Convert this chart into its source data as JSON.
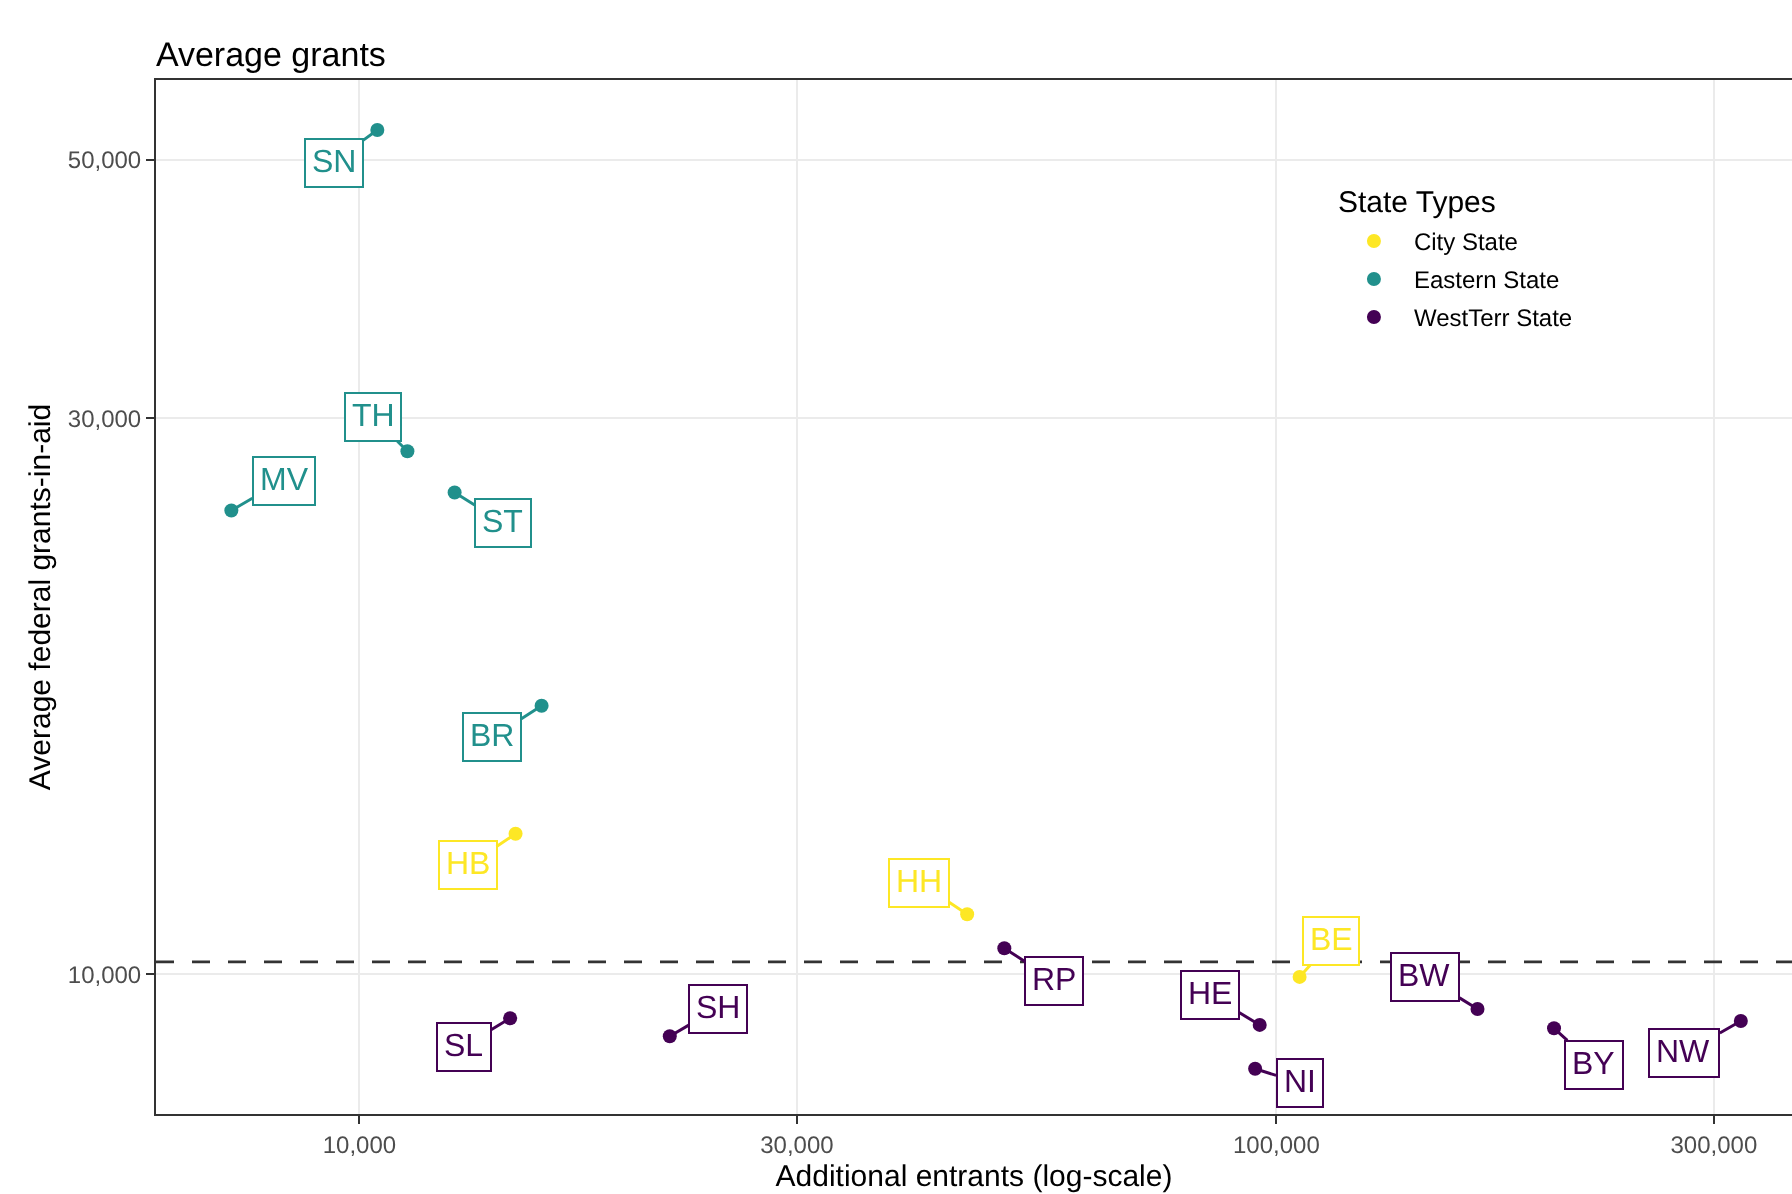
{
  "chart_data": {
    "type": "scatter",
    "title": "Average grants",
    "xlabel": "Additional entrants (log-scale)",
    "ylabel": "Average federal grants-in-aid",
    "legend_title": "State Types",
    "log": "xy",
    "grid": true,
    "legend": "top right",
    "marker": "circle",
    "xlim": [
      6000,
      365000
    ],
    "ylim": [
      7590,
      58500
    ],
    "xticks": [
      {
        "value": 10000,
        "label": "10,000"
      },
      {
        "value": 30000,
        "label": "30,000"
      },
      {
        "value": 100000,
        "label": "100,000"
      },
      {
        "value": 300000,
        "label": "300,000"
      }
    ],
    "yticks": [
      {
        "value": 10000,
        "label": "10,000"
      },
      {
        "value": 30000,
        "label": "30,000"
      },
      {
        "value": 50000,
        "label": "50,000"
      }
    ],
    "ref_lines": [
      {
        "axis": "y",
        "value": 10250,
        "color": "#333333",
        "line_style": "dashed"
      }
    ],
    "series": [
      {
        "name": "City State",
        "color": "#fde725",
        "x": [
          14800,
          46000,
          106000
        ],
        "values": [
          13200,
          11260,
          9950
        ]
      },
      {
        "name": "Eastern State",
        "color": "#21908c",
        "x": [
          10460,
          11280,
          7250,
          12700,
          15800
        ],
        "values": [
          53000,
          28100,
          25000,
          25900,
          17000
        ]
      },
      {
        "name": "WestTerr State",
        "color": "#440154",
        "x": [
          14600,
          21800,
          50500,
          95900,
          94800,
          165700,
          200800,
          321000
        ],
        "values": [
          9170,
          8850,
          10530,
          9050,
          8300,
          9340,
          8990,
          9120
        ]
      }
    ],
    "annotations": [
      {
        "text": "SN",
        "x": 10460,
        "y": 53000
      },
      {
        "text": "TH",
        "x": 11280,
        "y": 28100
      },
      {
        "text": "MV",
        "x": 7250,
        "y": 25000
      },
      {
        "text": "ST",
        "x": 12700,
        "y": 25900
      },
      {
        "text": "BR",
        "x": 15800,
        "y": 17000
      },
      {
        "text": "HB",
        "x": 14800,
        "y": 13200
      },
      {
        "text": "SL",
        "x": 14600,
        "y": 9170
      },
      {
        "text": "SH",
        "x": 21800,
        "y": 8850
      },
      {
        "text": "HH",
        "x": 46000,
        "y": 11260
      },
      {
        "text": "RP",
        "x": 50500,
        "y": 10530
      },
      {
        "text": "HE",
        "x": 95900,
        "y": 9050
      },
      {
        "text": "NI",
        "x": 94800,
        "y": 8300
      },
      {
        "text": "BE",
        "x": 106000,
        "y": 9950
      },
      {
        "text": "BW",
        "x": 165700,
        "y": 9340
      },
      {
        "text": "BY",
        "x": 200800,
        "y": 8990
      },
      {
        "text": "NW",
        "x": 321000,
        "y": 9120
      }
    ]
  }
}
